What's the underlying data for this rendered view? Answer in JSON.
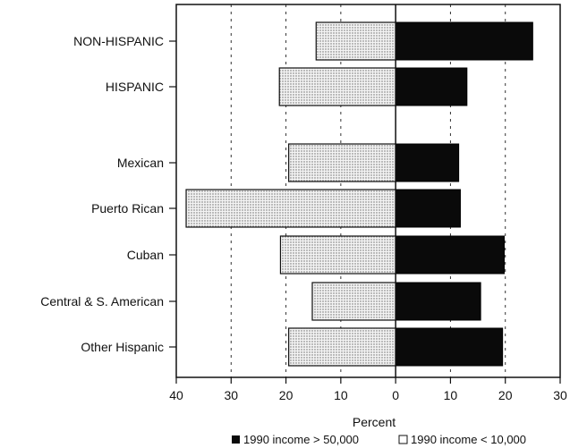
{
  "chart_data": {
    "type": "bar",
    "orientation": "horizontal-diverging",
    "categories": [
      "NON-HISPANIC",
      "HISPANIC",
      "Mexican",
      "Puerto Rican",
      "Cuban",
      "Central & S. American",
      "Other Hispanic"
    ],
    "series": [
      {
        "name": "1990 income > 50,000",
        "values": [
          25,
          13,
          11.5,
          11.8,
          19.8,
          15.5,
          19.5
        ],
        "direction": "right",
        "color": "#0a0a0a"
      },
      {
        "name": "1990 income < 10,000",
        "values": [
          14.5,
          21.2,
          19.5,
          38.2,
          21,
          15.2,
          19.5
        ],
        "direction": "left",
        "color": "#e8e8e8"
      }
    ],
    "xlabel": "Percent",
    "xlim": [
      -30,
      30
    ],
    "xlim_visual": [
      -40,
      30
    ],
    "x_ticks": [
      -40,
      -30,
      -20,
      -10,
      0,
      10,
      20,
      30
    ],
    "x_tick_labels": [
      "40",
      "30",
      "20",
      "10",
      "0",
      "10",
      "20",
      "30"
    ],
    "grid": "dashed vertical lines at 10, 20",
    "legend_position": "bottom"
  }
}
